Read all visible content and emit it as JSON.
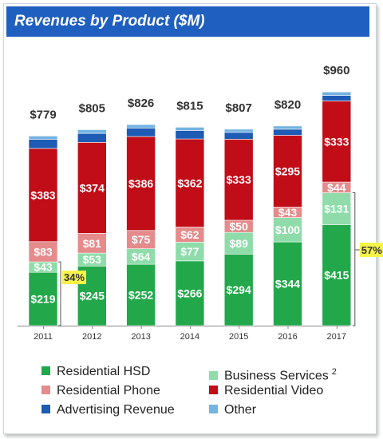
{
  "header": {
    "title": "Revenues by Product ($M)"
  },
  "chart_data": {
    "type": "bar",
    "stacked": true,
    "categories": [
      "2011",
      "2012",
      "2013",
      "2014",
      "2015",
      "2016",
      "2017"
    ],
    "totals": [
      "$779",
      "$805",
      "$826",
      "$815",
      "$807",
      "$820",
      "$960"
    ],
    "totals_values": [
      779,
      805,
      826,
      815,
      807,
      820,
      960
    ],
    "series": [
      {
        "name": "Residential HSD",
        "color": "#22a84a",
        "values": [
          219,
          245,
          252,
          266,
          294,
          344,
          415
        ]
      },
      {
        "name": "Business Services",
        "color": "#8fdcaa",
        "values": [
          43,
          53,
          64,
          77,
          89,
          100,
          131
        ]
      },
      {
        "name": "Residential Phone",
        "color": "#e58b8b",
        "values": [
          83,
          81,
          75,
          62,
          50,
          43,
          44
        ]
      },
      {
        "name": "Residential Video",
        "color": "#c00d18",
        "values": [
          383,
          374,
          386,
          362,
          333,
          295,
          333
        ]
      },
      {
        "name": "Advertising Revenue",
        "color": "#1d5bb5",
        "values": [
          37,
          37,
          35,
          35,
          28,
          25,
          23
        ]
      },
      {
        "name": "Other",
        "color": "#74b3e2",
        "values": [
          14,
          15,
          14,
          13,
          13,
          13,
          14
        ]
      }
    ],
    "annotations": [
      {
        "label": "34%",
        "category": "2011",
        "color": "#f6f34a"
      },
      {
        "label": "57%",
        "category": "2017",
        "color": "#f6f34a"
      }
    ],
    "legend_position": "bottom",
    "grid": false,
    "ylim": [
      0,
      1000
    ]
  },
  "legend": {
    "items": [
      {
        "label": "Residential HSD",
        "color": "#22a84a",
        "sup": ""
      },
      {
        "label": "Business Services",
        "color": "#8fdcaa",
        "sup": "2"
      },
      {
        "label": "Residential Phone",
        "color": "#e58b8b",
        "sup": ""
      },
      {
        "label": "Residential Video",
        "color": "#c00d18",
        "sup": ""
      },
      {
        "label": "Advertising Revenue",
        "color": "#1d5bb5",
        "sup": ""
      },
      {
        "label": "Other",
        "color": "#74b3e2",
        "sup": ""
      }
    ]
  }
}
